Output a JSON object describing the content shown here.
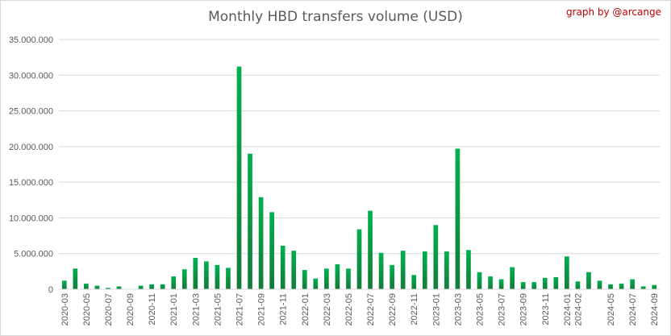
{
  "chart_data": {
    "type": "bar",
    "title": "Monthly HBD transfers volume (USD)",
    "credit": "graph by @arcange",
    "colors": {
      "bar_top": "#00b050",
      "bar_bottom": "#147a3a",
      "grid": "#d9d9d9",
      "text": "#595959",
      "credit": "#c00000"
    },
    "grid": true,
    "ylim": [
      0,
      35000000
    ],
    "yticks": [
      0,
      5000000,
      10000000,
      15000000,
      20000000,
      25000000,
      30000000,
      35000000
    ],
    "ytick_labels": [
      "0",
      "5.000.000",
      "10.000.000",
      "15.000.000",
      "20.000.000",
      "25.000.000",
      "30.000.000",
      "35.000.000"
    ],
    "categories": [
      "2020-03",
      "2020-04",
      "2020-05",
      "2020-06",
      "2020-07",
      "2020-08",
      "2020-09",
      "2020-10",
      "2020-11",
      "2020-12",
      "2021-01",
      "2021-02",
      "2021-03",
      "2021-04",
      "2021-05",
      "2021-06",
      "2021-07",
      "2021-08",
      "2021-09",
      "2021-10",
      "2021-11",
      "2021-12",
      "2022-01",
      "2022-02",
      "2022-03",
      "2022-04",
      "2022-05",
      "2022-06",
      "2022-07",
      "2022-08",
      "2022-09",
      "2022-10",
      "2022-11",
      "2022-12",
      "2023-01",
      "2023-02",
      "2023-03",
      "2023-04",
      "2023-05",
      "2023-06",
      "2023-07",
      "2023-08",
      "2023-09",
      "2023-10",
      "2023-11",
      "2023-12",
      "2024-01",
      "2024-02",
      "2024-03",
      "2024-04",
      "2024-05",
      "2024-06",
      "2024-07",
      "2024-08",
      "2024-09"
    ],
    "x_labels": [
      "2020-03",
      "2020-05",
      "2020-07",
      "2020-09",
      "2020-11",
      "2021-01",
      "2021-03",
      "2021-05",
      "2021-07",
      "2021-09",
      "2021-11",
      "2022-01",
      "2022-03",
      "2022-05",
      "2022-07",
      "2022-09",
      "2022-11",
      "2023-01",
      "2023-03",
      "2023-05",
      "2023-07",
      "2023-09",
      "2023-11",
      "2024-01",
      "2024-02",
      "2024-05",
      "2024-07",
      "2024-09"
    ],
    "values": [
      1200000,
      2900000,
      800000,
      500000,
      200000,
      400000,
      50000,
      500000,
      700000,
      700000,
      1800000,
      2800000,
      4400000,
      3900000,
      3400000,
      3000000,
      31200000,
      19000000,
      12900000,
      10800000,
      6100000,
      5400000,
      2700000,
      1500000,
      2900000,
      3500000,
      2900000,
      8400000,
      11000000,
      5100000,
      3400000,
      5400000,
      2000000,
      5300000,
      9000000,
      5300000,
      19700000,
      5500000,
      2400000,
      1800000,
      1400000,
      3100000,
      1000000,
      1000000,
      1600000,
      1700000,
      4600000,
      1100000,
      2400000,
      1200000,
      700000,
      800000,
      1400000,
      400000,
      600000
    ]
  }
}
